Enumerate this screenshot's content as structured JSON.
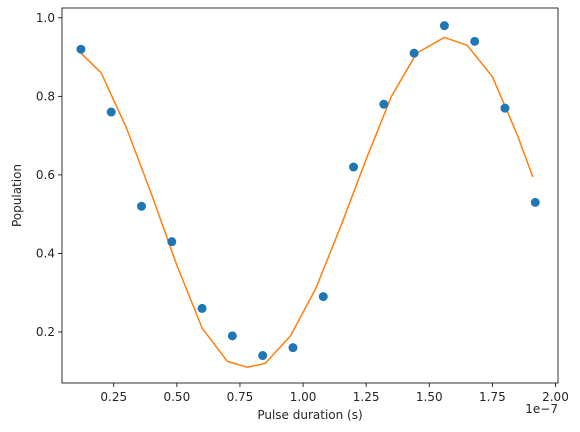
{
  "chart_data": {
    "type": "scatter",
    "xlabel": "Pulse duration (s)",
    "ylabel": "Population",
    "x_offset_text": "1e−7",
    "x_scale": 1e-07,
    "xlim": [
      0.045,
      2.01
    ],
    "ylim": [
      0.07,
      1.025
    ],
    "grid": false,
    "x_ticks": [
      0.25,
      0.5,
      0.75,
      1.0,
      1.25,
      1.5,
      1.75,
      2.0
    ],
    "x_tick_labels": [
      "0.25",
      "0.50",
      "0.75",
      "1.00",
      "1.25",
      "1.50",
      "1.75",
      "2.00"
    ],
    "y_ticks": [
      0.2,
      0.4,
      0.6,
      0.8,
      1.0
    ],
    "y_tick_labels": [
      "0.2",
      "0.4",
      "0.6",
      "0.8",
      "1.0"
    ],
    "series": [
      {
        "kind": "points",
        "color": "#1f77b4",
        "x": [
          0.12,
          0.24,
          0.36,
          0.48,
          0.6,
          0.72,
          0.84,
          0.96,
          1.08,
          1.2,
          1.32,
          1.44,
          1.56,
          1.68,
          1.8,
          1.92
        ],
        "y": [
          0.92,
          0.76,
          0.52,
          0.43,
          0.26,
          0.19,
          0.14,
          0.16,
          0.29,
          0.62,
          0.78,
          0.91,
          0.98,
          0.94,
          0.77,
          0.53
        ]
      },
      {
        "kind": "fit-line",
        "color": "#ff7f0e",
        "x": [
          0.12,
          0.2,
          0.3,
          0.4,
          0.5,
          0.6,
          0.7,
          0.78,
          0.85,
          0.95,
          1.05,
          1.15,
          1.25,
          1.35,
          1.45,
          1.56,
          1.65,
          1.75,
          1.85,
          1.91
        ],
        "y": [
          0.91,
          0.86,
          0.72,
          0.55,
          0.37,
          0.21,
          0.125,
          0.11,
          0.12,
          0.19,
          0.31,
          0.47,
          0.64,
          0.8,
          0.91,
          0.95,
          0.93,
          0.85,
          0.7,
          0.595
        ]
      }
    ]
  }
}
